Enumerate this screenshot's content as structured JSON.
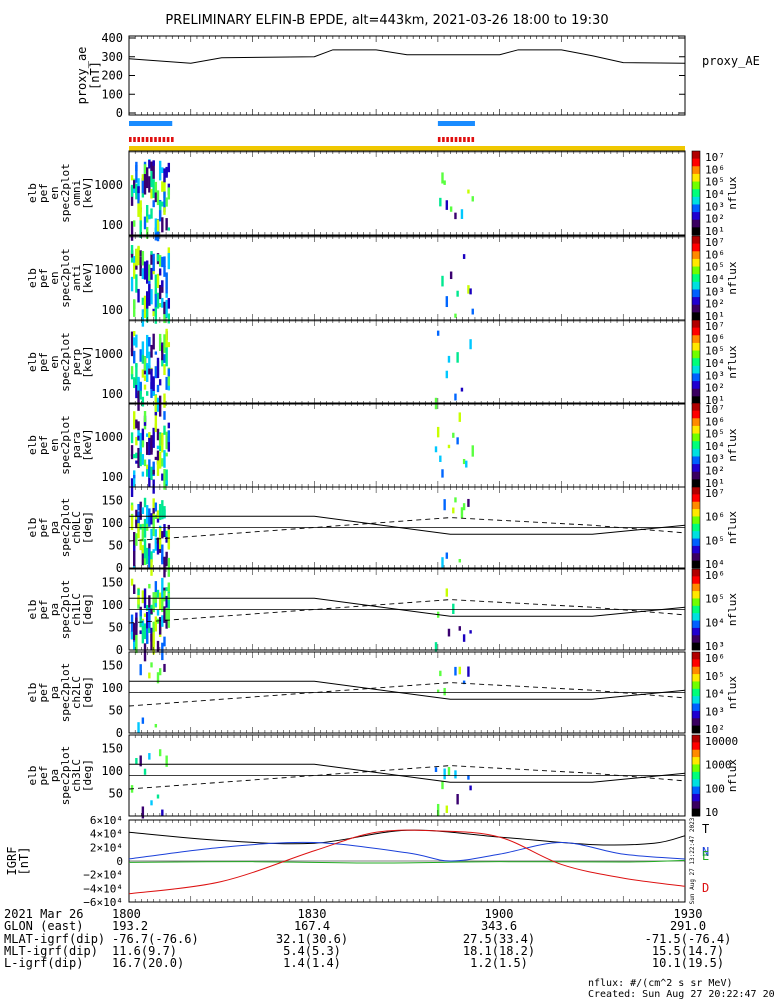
{
  "title": "PRELIMINARY ELFIN-B EPDE, alt=443km, 2021-03-26 18:00 to 19:30",
  "x_ticks": [
    "1800",
    "1830",
    "1900",
    "1930"
  ],
  "x_range": [
    "18:00",
    "19:30"
  ],
  "proxy_panel": {
    "ylabel": [
      "proxy_ae",
      "[nT]"
    ],
    "legend": "proxy_AE",
    "ticks": [
      "400",
      "300",
      "200",
      "100",
      "0"
    ],
    "ylim": [
      0,
      400
    ],
    "series": [
      {
        "t": 0,
        "v": 285
      },
      {
        "t": 10,
        "v": 262
      },
      {
        "t": 15,
        "v": 290
      },
      {
        "t": 30,
        "v": 295
      },
      {
        "t": 33,
        "v": 330
      },
      {
        "t": 40,
        "v": 330
      },
      {
        "t": 45,
        "v": 305
      },
      {
        "t": 60,
        "v": 305
      },
      {
        "t": 63,
        "v": 330
      },
      {
        "t": 70,
        "v": 330
      },
      {
        "t": 75,
        "v": 300
      },
      {
        "t": 80,
        "v": 265
      },
      {
        "t": 90,
        "v": 262
      }
    ]
  },
  "science_zones": [
    {
      "start": 0,
      "end": 7,
      "color": "#1a8cff"
    },
    {
      "start": 50,
      "end": 56,
      "color": "#1a8cff"
    }
  ],
  "energy_panels": [
    {
      "ylabel": [
        "elb",
        "pef",
        "en",
        "spec2plot",
        "omni",
        "[keV]"
      ],
      "ticks": [
        "1000",
        "100"
      ],
      "cbar_label": "nflux",
      "cbar_ticks": [
        "10⁷",
        "10⁶",
        "10⁵",
        "10⁴",
        "10³",
        "10²",
        "10¹"
      ]
    },
    {
      "ylabel": [
        "elb",
        "pef",
        "en",
        "spec2plot",
        "anti",
        "[keV]"
      ],
      "ticks": [
        "1000",
        "100"
      ],
      "cbar_label": "nflux",
      "cbar_ticks": [
        "10⁷",
        "10⁶",
        "10⁵",
        "10⁴",
        "10³",
        "10²",
        "10¹"
      ]
    },
    {
      "ylabel": [
        "elb",
        "pef",
        "en",
        "spec2plot",
        "perp",
        "[keV]"
      ],
      "ticks": [
        "1000",
        "100"
      ],
      "cbar_label": "nflux",
      "cbar_ticks": [
        "10⁷",
        "10⁶",
        "10⁵",
        "10⁴",
        "10³",
        "10²",
        "10¹"
      ]
    },
    {
      "ylabel": [
        "elb",
        "pef",
        "en",
        "spec2plot",
        "para",
        "[keV]"
      ],
      "ticks": [
        "1000",
        "100"
      ],
      "cbar_label": "nflux",
      "cbar_ticks": [
        "10⁷",
        "10⁶",
        "10⁵",
        "10⁴",
        "10³",
        "10²",
        "10¹"
      ]
    }
  ],
  "pa_panels": [
    {
      "ylabel": [
        "elb",
        "pef",
        "pa",
        "spec2plot",
        "ch0LC",
        "[deg]"
      ],
      "ticks": [
        "150",
        "100",
        "50",
        "0"
      ],
      "cbar_label": "nflux",
      "cbar_ticks": [
        "10⁷",
        "10⁶",
        "10⁵",
        "10⁴"
      ]
    },
    {
      "ylabel": [
        "elb",
        "pef",
        "pa",
        "spec2plot",
        "ch1LC",
        "[deg]"
      ],
      "ticks": [
        "150",
        "100",
        "50",
        "0"
      ],
      "cbar_label": "nflux",
      "cbar_ticks": [
        "10⁶",
        "10⁵",
        "10⁴",
        "10³"
      ]
    },
    {
      "ylabel": [
        "elb",
        "pef",
        "pa",
        "spec2plot",
        "ch2LC",
        "[deg]"
      ],
      "ticks": [
        "150",
        "100",
        "50",
        "0"
      ],
      "cbar_label": "nflux",
      "cbar_ticks": [
        "10⁶",
        "10⁵",
        "10⁴",
        "10³",
        "10²"
      ]
    },
    {
      "ylabel": [
        "elb",
        "pef",
        "pa",
        "spec2plot",
        "ch3LC",
        "[deg]"
      ],
      "ticks": [
        "150",
        "100",
        "50"
      ],
      "cbar_label": "nflux",
      "cbar_ticks": [
        "10000",
        "1000",
        "100",
        "10"
      ]
    }
  ],
  "igrf_panel": {
    "ylabel": [
      "IGRF",
      "[nT]"
    ],
    "ticks": [
      "6×10⁴",
      "4×10⁴",
      "2×10⁴",
      "0",
      "−2×10⁴",
      "−4×10⁴",
      "−6×10⁴"
    ],
    "ylim": [
      -60000,
      60000
    ],
    "legend": [
      {
        "name": "T",
        "color": "#000000"
      },
      {
        "name": "N",
        "color": "#1a3fd9"
      },
      {
        "name": "E",
        "color": "#22aa22"
      },
      {
        "name": "D",
        "color": "#dd1111"
      }
    ],
    "side_stamp": "Sun Aug 27 13:22:47 2023",
    "series": {
      "T": [
        {
          "t": 0,
          "v": 42000
        },
        {
          "t": 15,
          "v": 30000
        },
        {
          "t": 30,
          "v": 26000
        },
        {
          "t": 45,
          "v": 45000
        },
        {
          "t": 60,
          "v": 35000
        },
        {
          "t": 75,
          "v": 24000
        },
        {
          "t": 85,
          "v": 26000
        },
        {
          "t": 90,
          "v": 37000
        }
      ],
      "N": [
        {
          "t": 0,
          "v": 3000
        },
        {
          "t": 15,
          "v": 20000
        },
        {
          "t": 30,
          "v": 27000
        },
        {
          "t": 45,
          "v": 12000
        },
        {
          "t": 52,
          "v": 0
        },
        {
          "t": 60,
          "v": 10000
        },
        {
          "t": 70,
          "v": 27000
        },
        {
          "t": 80,
          "v": 10000
        },
        {
          "t": 90,
          "v": 3000
        }
      ],
      "E": [
        {
          "t": 0,
          "v": -2000
        },
        {
          "t": 20,
          "v": -1000
        },
        {
          "t": 40,
          "v": -3000
        },
        {
          "t": 60,
          "v": -1000
        },
        {
          "t": 80,
          "v": -1500
        },
        {
          "t": 90,
          "v": 1000
        }
      ],
      "D": [
        {
          "t": 0,
          "v": -48000
        },
        {
          "t": 15,
          "v": -30000
        },
        {
          "t": 30,
          "v": 15000
        },
        {
          "t": 40,
          "v": 42000
        },
        {
          "t": 50,
          "v": 44000
        },
        {
          "t": 60,
          "v": 35000
        },
        {
          "t": 70,
          "v": -5000
        },
        {
          "t": 80,
          "v": -25000
        },
        {
          "t": 90,
          "v": -37000
        }
      ]
    }
  },
  "ephem": {
    "labels": [
      "2021 Mar 26",
      "GLON (east)",
      "MLAT-igrf(dip)",
      "MLT-igrf(dip)",
      "L-igrf(dip)"
    ],
    "col0": [
      "1800",
      "193.2",
      "-76.7(-76.6)",
      "11.6(9.7)",
      "16.7(20.0)"
    ],
    "col1": [
      "1830",
      "167.4",
      "32.1(30.6)",
      "5.4(5.3)",
      "1.4(1.4)"
    ],
    "col2": [
      "1900",
      "343.6",
      "27.5(33.4)",
      "18.1(18.2)",
      "1.2(1.5)"
    ],
    "col3": [
      "1930",
      "291.0",
      "-71.5(-76.4)",
      "15.5(14.7)",
      "10.1(19.5)"
    ]
  },
  "footer": {
    "units": "nflux: #/(cm^2 s sr MeV)",
    "created": "Created: Sun Aug 27 20:22:47 2023"
  }
}
